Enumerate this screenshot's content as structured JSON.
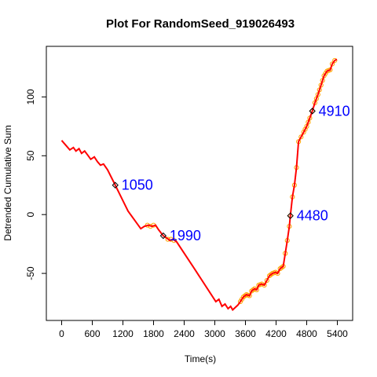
{
  "chart_data": {
    "type": "line",
    "title": "Plot For RandomSeed_919026493",
    "xlabel": "Time(s)",
    "ylabel": "Detrended Cumulative Sum",
    "xlim": [
      -300,
      5700
    ],
    "ylim": [
      -90,
      143
    ],
    "x_ticks": [
      0,
      600,
      1200,
      1800,
      2400,
      3000,
      3600,
      4200,
      4800,
      5400
    ],
    "y_ticks": [
      -50,
      0,
      50,
      100
    ],
    "grid": false,
    "line_color": "#ff0000",
    "marker_color": "#ffa500",
    "series": [
      {
        "points": [
          [
            0,
            63
          ],
          [
            80,
            59
          ],
          [
            160,
            55
          ],
          [
            230,
            57
          ],
          [
            280,
            54
          ],
          [
            340,
            56
          ],
          [
            390,
            52
          ],
          [
            450,
            54
          ],
          [
            520,
            50
          ],
          [
            570,
            47
          ],
          [
            640,
            49
          ],
          [
            700,
            45
          ],
          [
            760,
            42
          ],
          [
            820,
            43
          ],
          [
            900,
            38
          ],
          [
            1050,
            25
          ],
          [
            1300,
            3
          ],
          [
            1550,
            -12
          ],
          [
            1620,
            -10
          ],
          [
            1700,
            -9
          ],
          [
            1770,
            -10
          ],
          [
            1840,
            -9
          ],
          [
            1900,
            -13
          ],
          [
            1990,
            -18
          ],
          [
            2060,
            -20
          ],
          [
            2120,
            -22
          ],
          [
            2180,
            -21
          ],
          [
            2250,
            -23
          ],
          [
            2600,
            -46
          ],
          [
            2900,
            -66
          ],
          [
            3020,
            -74
          ],
          [
            3080,
            -72
          ],
          [
            3140,
            -78
          ],
          [
            3200,
            -76
          ],
          [
            3260,
            -80
          ],
          [
            3310,
            -78
          ],
          [
            3350,
            -81
          ],
          [
            3400,
            -79
          ],
          [
            3450,
            -77
          ],
          [
            3500,
            -74
          ],
          [
            3560,
            -70
          ],
          [
            3620,
            -68
          ],
          [
            3680,
            -69
          ],
          [
            3720,
            -65
          ],
          [
            3780,
            -63
          ],
          [
            3820,
            -64
          ],
          [
            3860,
            -60
          ],
          [
            3920,
            -59
          ],
          [
            3970,
            -60
          ],
          [
            4020,
            -56
          ],
          [
            4070,
            -52
          ],
          [
            4130,
            -50
          ],
          [
            4190,
            -49
          ],
          [
            4230,
            -50
          ],
          [
            4280,
            -46
          ],
          [
            4340,
            -44
          ],
          [
            4380,
            -33
          ],
          [
            4420,
            -22
          ],
          [
            4460,
            -10
          ],
          [
            4480,
            -1
          ],
          [
            4520,
            15
          ],
          [
            4560,
            25
          ],
          [
            4600,
            40
          ],
          [
            4640,
            62
          ],
          [
            4690,
            66
          ],
          [
            4740,
            70
          ],
          [
            4800,
            75
          ],
          [
            4860,
            82
          ],
          [
            4910,
            88
          ],
          [
            4960,
            95
          ],
          [
            5020,
            102
          ],
          [
            5080,
            110
          ],
          [
            5140,
            118
          ],
          [
            5200,
            122
          ],
          [
            5260,
            123
          ],
          [
            5300,
            128
          ],
          [
            5350,
            131
          ],
          [
            5390,
            132
          ]
        ],
        "marker_start": 3460
      }
    ],
    "change_points": [
      {
        "x": 1050,
        "y": 25,
        "label": "1050"
      },
      {
        "x": 1990,
        "y": -18,
        "label": "1990"
      },
      {
        "x": 4480,
        "y": -1,
        "label": "4480"
      },
      {
        "x": 4910,
        "y": 88,
        "label": "4910"
      }
    ]
  }
}
